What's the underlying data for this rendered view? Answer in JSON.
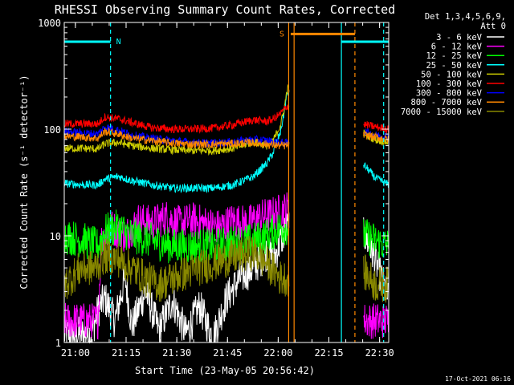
{
  "chart_data": {
    "type": "line",
    "title": "RHESSI Observing Summary Count Rates, Corrected",
    "xlabel": "Start Time (23-May-05 20:56:42)",
    "ylabel": "Corrected Count Rate (s⁻¹ detector⁻¹)",
    "x_unit": "minutes after 20:56:42",
    "xlim": [
      0,
      96
    ],
    "ylim": [
      1,
      1000
    ],
    "yscale": "log",
    "x_ticks": [
      {
        "pos": 3.3,
        "label": "21:00"
      },
      {
        "pos": 18.3,
        "label": "21:15"
      },
      {
        "pos": 33.3,
        "label": "21:30"
      },
      {
        "pos": 48.3,
        "label": "21:45"
      },
      {
        "pos": 63.3,
        "label": "22:00"
      },
      {
        "pos": 78.3,
        "label": "22:15"
      },
      {
        "pos": 93.3,
        "label": "22:30"
      }
    ],
    "y_ticks": [
      {
        "value": 1,
        "label": "1"
      },
      {
        "value": 10,
        "label": "10"
      },
      {
        "value": 100,
        "label": "100"
      },
      {
        "value": 1000,
        "label": "1000"
      }
    ],
    "legend_header": [
      "Det 1,3,4,5,6,9,",
      "Att 0"
    ],
    "legend_position": "right",
    "gaps": [
      [
        66.5,
        88.5
      ]
    ],
    "series": [
      {
        "name": "3 - 6 keV",
        "color": "#ffffff",
        "x": [
          0,
          8,
          10,
          12,
          15,
          18,
          20,
          24,
          28,
          32,
          36,
          40,
          44,
          48,
          52,
          56,
          60,
          62,
          64,
          66,
          89,
          92,
          96
        ],
        "values": [
          1.2,
          1.2,
          2,
          2.6,
          1.6,
          4,
          1.4,
          3,
          1.3,
          2.5,
          1.2,
          2.2,
          1.1,
          2.6,
          4,
          5,
          7,
          6,
          9,
          12,
          10,
          6,
          2.5
        ]
      },
      {
        "name": "6 - 12 keV",
        "color": "#ff00ff",
        "x": [
          0,
          10,
          11,
          14,
          18,
          22,
          26,
          30,
          34,
          38,
          42,
          46,
          50,
          54,
          58,
          62,
          66,
          89,
          92,
          96
        ],
        "values": [
          1.6,
          1.6,
          9,
          12,
          10,
          14,
          13,
          15,
          13,
          14,
          13,
          12,
          14,
          13,
          15,
          16,
          18,
          1.6,
          1.6,
          1.6
        ]
      },
      {
        "name": "12 - 25 keV",
        "color": "#00ff00",
        "x": [
          0,
          6,
          10,
          12,
          16,
          20,
          26,
          32,
          38,
          44,
          50,
          56,
          60,
          64,
          66,
          89,
          92,
          96
        ],
        "values": [
          10,
          9,
          8,
          11,
          12,
          10,
          9,
          8,
          8,
          8,
          8.5,
          9,
          10,
          12,
          12,
          10,
          9,
          8
        ]
      },
      {
        "name": "25 - 50 keV",
        "color": "#00ffff",
        "x": [
          0,
          6,
          10,
          12,
          16,
          20,
          26,
          32,
          38,
          44,
          50,
          56,
          60,
          62,
          64,
          65,
          66,
          89,
          92,
          96
        ],
        "values": [
          31,
          30,
          30,
          34,
          36,
          33,
          30,
          28,
          28,
          28,
          30,
          36,
          48,
          62,
          95,
          140,
          220,
          45,
          35,
          30
        ]
      },
      {
        "name": "50 - 100 keV",
        "color": "#cccc00",
        "x": [
          0,
          6,
          10,
          12,
          16,
          20,
          26,
          32,
          38,
          44,
          50,
          56,
          60,
          62,
          64,
          65,
          66,
          89,
          92,
          96
        ],
        "values": [
          66,
          66,
          65,
          73,
          75,
          70,
          66,
          64,
          63,
          63,
          66,
          76,
          70,
          80,
          110,
          150,
          240,
          90,
          80,
          75
        ]
      },
      {
        "name": "100 - 300 keV",
        "color": "#ff0000",
        "x": [
          0,
          6,
          10,
          12,
          16,
          20,
          26,
          32,
          38,
          44,
          50,
          56,
          60,
          62,
          64,
          66,
          89,
          92,
          96
        ],
        "values": [
          112,
          112,
          112,
          130,
          125,
          115,
          103,
          100,
          100,
          102,
          110,
          122,
          118,
          125,
          140,
          165,
          110,
          105,
          100
        ]
      },
      {
        "name": "300 - 800 keV",
        "color": "#0000ff",
        "x": [
          0,
          6,
          10,
          12,
          16,
          20,
          26,
          32,
          38,
          44,
          50,
          56,
          60,
          62,
          64,
          66,
          89,
          92,
          96
        ],
        "values": [
          95,
          92,
          90,
          105,
          98,
          88,
          82,
          78,
          75,
          74,
          76,
          80,
          78,
          76,
          75,
          74,
          95,
          88,
          85
        ]
      },
      {
        "name": "800 - 7000 keV",
        "color": "#ff8800",
        "x": [
          0,
          6,
          10,
          12,
          16,
          20,
          26,
          32,
          38,
          44,
          50,
          56,
          60,
          62,
          64,
          66,
          89,
          92,
          96
        ],
        "values": [
          86,
          84,
          82,
          95,
          90,
          82,
          78,
          74,
          72,
          72,
          73,
          75,
          72,
          71,
          70,
          70,
          88,
          84,
          80
        ]
      },
      {
        "name": "7000 - 15000 keV",
        "color": "#888800",
        "x": [
          0,
          5,
          9,
          12,
          16,
          20,
          24,
          28,
          32,
          36,
          40,
          44,
          48,
          52,
          56,
          60,
          64,
          66,
          89,
          92,
          96
        ],
        "values": [
          3.5,
          5,
          5,
          6.5,
          6,
          5,
          4,
          3.5,
          4,
          4.5,
          5,
          5.5,
          6,
          6.5,
          7,
          5.5,
          4,
          4,
          4.5,
          3.5,
          3.5
        ]
      }
    ],
    "flag_lines": [
      {
        "label": "N",
        "color": "#00ffff",
        "start": 0,
        "end": 13.7,
        "level": 660
      },
      {
        "label": "",
        "color": "#00ffff",
        "start": 82,
        "end": 96,
        "level": 660
      },
      {
        "label": "S",
        "color": "#ff8800",
        "start": 67,
        "end": 86,
        "level": 780
      }
    ],
    "vertical_markers": [
      {
        "color": "#00ffff",
        "x": 13.7,
        "style": "dashed"
      },
      {
        "color": "#00ffff",
        "x": 82,
        "style": "solid"
      },
      {
        "color": "#00ffff",
        "x": 94.5,
        "style": "dashed"
      },
      {
        "color": "#ff8800",
        "x": 66.4,
        "style": "solid"
      },
      {
        "color": "#ff8800",
        "x": 68,
        "style": "solid"
      },
      {
        "color": "#ff8800",
        "x": 86,
        "style": "dashed"
      }
    ],
    "timestamp": "17-Oct-2021 06:16"
  }
}
